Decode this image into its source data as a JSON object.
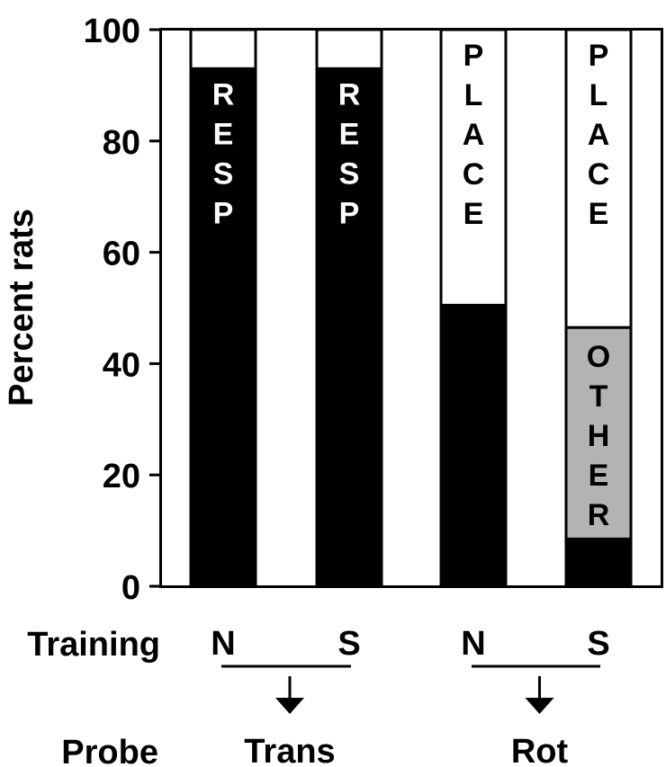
{
  "chart_data": {
    "type": "bar",
    "stacked": true,
    "title": "",
    "ylabel": "Percent rats",
    "ylim": [
      0,
      100
    ],
    "yticks": [
      0,
      20,
      40,
      60,
      80,
      100
    ],
    "grid": false,
    "legend": "none",
    "row_labels": {
      "training": "Training",
      "probe": "Probe"
    },
    "categories": [
      "N",
      "S",
      "N",
      "S"
    ],
    "groups": [
      {
        "label": "Trans",
        "indices": [
          0,
          1
        ]
      },
      {
        "label": "Rot",
        "indices": [
          2,
          3
        ]
      }
    ],
    "series": [
      {
        "key": "black",
        "color": "#000000",
        "values": [
          93,
          93,
          50.5,
          8.5
        ]
      },
      {
        "key": "gray",
        "color": "#b3b3b3",
        "values": [
          0,
          0,
          0,
          38
        ]
      },
      {
        "key": "white",
        "color": "#ffffff",
        "values": [
          7,
          7,
          49.5,
          53.5
        ]
      }
    ],
    "bar_labels": [
      {
        "bar": 0,
        "series": "black",
        "text": "RESP",
        "color": "#ffffff"
      },
      {
        "bar": 1,
        "series": "black",
        "text": "RESP",
        "color": "#ffffff"
      },
      {
        "bar": 2,
        "series": "white",
        "text": "PLACE",
        "color": "#000000"
      },
      {
        "bar": 3,
        "series": "white",
        "text": "PLACE",
        "color": "#000000"
      },
      {
        "bar": 3,
        "series": "gray",
        "text": "OTHER",
        "color": "#000000"
      }
    ]
  }
}
